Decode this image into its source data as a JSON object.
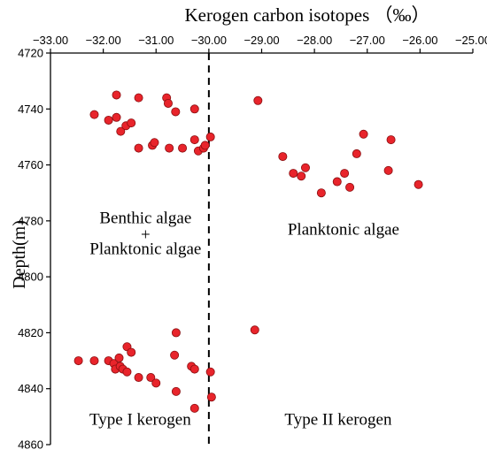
{
  "chart_data": {
    "type": "scatter",
    "title": "",
    "xlabel": "Kerogen carbon isotopes （‰）",
    "ylabel": "Depth(m)",
    "xlim": [
      -33.0,
      -25.0
    ],
    "ylim": [
      4720,
      4860
    ],
    "x_axis_position": "top",
    "y_axis_inverted": true,
    "grid": false,
    "x_ticks": [
      "−33.00",
      "−32.00",
      "−31.00",
      "−30.00",
      "−29.00",
      "−28.00",
      "−27.00",
      "−26.00",
      "−25.00"
    ],
    "x_tick_values": [
      -33,
      -32,
      -31,
      -30,
      -29,
      -28,
      -27,
      -26,
      -25
    ],
    "y_ticks": [
      "4720",
      "4740",
      "4760",
      "4780",
      "4800",
      "4820",
      "4840",
      "4860"
    ],
    "y_tick_values": [
      4720,
      4740,
      4760,
      4780,
      4800,
      4820,
      4840,
      4860
    ],
    "reference_line": {
      "x": -30.0,
      "style": "dashed"
    },
    "marker_color": "#e8242b",
    "marker_edge": "#8a0e10",
    "series": [
      {
        "points": [
          {
            "x": -32.17,
            "y": 4742
          },
          {
            "x": -31.9,
            "y": 4744
          },
          {
            "x": -31.75,
            "y": 4743
          },
          {
            "x": -31.67,
            "y": 4748
          },
          {
            "x": -31.57,
            "y": 4746
          },
          {
            "x": -31.47,
            "y": 4745
          },
          {
            "x": -31.75,
            "y": 4735
          },
          {
            "x": -31.33,
            "y": 4736
          },
          {
            "x": -30.8,
            "y": 4736
          },
          {
            "x": -30.77,
            "y": 4738
          },
          {
            "x": -30.63,
            "y": 4741
          },
          {
            "x": -30.27,
            "y": 4740
          },
          {
            "x": -31.33,
            "y": 4754
          },
          {
            "x": -31.07,
            "y": 4753
          },
          {
            "x": -31.03,
            "y": 4752
          },
          {
            "x": -30.75,
            "y": 4754
          },
          {
            "x": -30.5,
            "y": 4754
          },
          {
            "x": -30.27,
            "y": 4751
          },
          {
            "x": -30.2,
            "y": 4755
          },
          {
            "x": -30.1,
            "y": 4754
          },
          {
            "x": -30.07,
            "y": 4753
          },
          {
            "x": -29.97,
            "y": 4750
          },
          {
            "x": -29.07,
            "y": 4737
          },
          {
            "x": -28.6,
            "y": 4757
          },
          {
            "x": -28.4,
            "y": 4763
          },
          {
            "x": -28.25,
            "y": 4764
          },
          {
            "x": -28.17,
            "y": 4761
          },
          {
            "x": -27.87,
            "y": 4770
          },
          {
            "x": -27.57,
            "y": 4766
          },
          {
            "x": -27.43,
            "y": 4763
          },
          {
            "x": -27.33,
            "y": 4768
          },
          {
            "x": -27.2,
            "y": 4756
          },
          {
            "x": -27.07,
            "y": 4749
          },
          {
            "x": -26.6,
            "y": 4762
          },
          {
            "x": -26.55,
            "y": 4751
          },
          {
            "x": -26.03,
            "y": 4767
          },
          {
            "x": -32.47,
            "y": 4830
          },
          {
            "x": -32.17,
            "y": 4830
          },
          {
            "x": -31.9,
            "y": 4830
          },
          {
            "x": -31.8,
            "y": 4831
          },
          {
            "x": -31.77,
            "y": 4833
          },
          {
            "x": -31.7,
            "y": 4829
          },
          {
            "x": -31.68,
            "y": 4832
          },
          {
            "x": -31.63,
            "y": 4833
          },
          {
            "x": -31.55,
            "y": 4834
          },
          {
            "x": -31.55,
            "y": 4825
          },
          {
            "x": -31.47,
            "y": 4827
          },
          {
            "x": -31.33,
            "y": 4836
          },
          {
            "x": -31.1,
            "y": 4836
          },
          {
            "x": -31.0,
            "y": 4838
          },
          {
            "x": -30.65,
            "y": 4828
          },
          {
            "x": -30.62,
            "y": 4820
          },
          {
            "x": -30.62,
            "y": 4841
          },
          {
            "x": -30.33,
            "y": 4832
          },
          {
            "x": -30.27,
            "y": 4833
          },
          {
            "x": -30.27,
            "y": 4847
          },
          {
            "x": -29.97,
            "y": 4834
          },
          {
            "x": -29.95,
            "y": 4843
          },
          {
            "x": -29.13,
            "y": 4819
          }
        ]
      }
    ],
    "annotations": [
      {
        "text": "Benthic algae",
        "x": -31.2,
        "y": 4779
      },
      {
        "text": "+",
        "x": -31.2,
        "y": 4785
      },
      {
        "text": "Planktonic algae",
        "x": -31.2,
        "y": 4790
      },
      {
        "text": "Planktonic algae",
        "x": -27.45,
        "y": 4783
      },
      {
        "text": "Type I kerogen",
        "x": -31.3,
        "y": 4851
      },
      {
        "text": "Type II kerogen",
        "x": -27.55,
        "y": 4851
      }
    ]
  }
}
